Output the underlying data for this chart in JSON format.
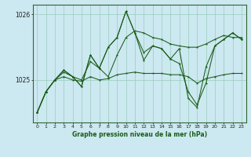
{
  "title": "Graphe pression niveau de la mer (hPa)",
  "background_color": "#cce8f0",
  "plot_bg_color": "#cce8f0",
  "line_color": "#1a5c1a",
  "grid_color": "#99ccbb",
  "ylim": [
    1024.35,
    1026.15
  ],
  "xlim": [
    -0.5,
    23.5
  ],
  "xticks": [
    0,
    1,
    2,
    3,
    4,
    5,
    6,
    7,
    8,
    9,
    10,
    11,
    12,
    13,
    14,
    15,
    16,
    17,
    18,
    19,
    20,
    21,
    22,
    23
  ],
  "yticks": [
    1025,
    1026
  ],
  "series_volatile": [
    1024.5,
    1024.82,
    1025.0,
    1025.15,
    1025.05,
    1024.9,
    1025.38,
    1025.18,
    1025.5,
    1025.65,
    1026.05,
    1025.72,
    1025.42,
    1025.52,
    1025.48,
    1025.32,
    1025.25,
    1024.82,
    1024.62,
    1024.95,
    1025.52,
    1025.62,
    1025.72,
    1025.62
  ],
  "series_smooth_high": [
    1024.5,
    1024.82,
    1025.0,
    1025.12,
    1025.05,
    1025.0,
    1025.28,
    1025.18,
    1025.05,
    1025.38,
    1025.65,
    1025.75,
    1025.72,
    1025.65,
    1025.62,
    1025.55,
    1025.52,
    1025.5,
    1025.5,
    1025.55,
    1025.62,
    1025.68,
    1025.65,
    1025.65
  ],
  "series_flat": [
    1024.5,
    1024.82,
    1025.0,
    1025.05,
    1025.0,
    1024.98,
    1025.05,
    1025.0,
    1025.02,
    1025.08,
    1025.1,
    1025.12,
    1025.1,
    1025.1,
    1025.1,
    1025.08,
    1025.08,
    1025.05,
    1024.95,
    1025.02,
    1025.05,
    1025.08,
    1025.1,
    1025.1
  ],
  "series_dip": [
    1024.5,
    1024.82,
    1025.0,
    1025.15,
    1025.05,
    1024.9,
    1025.38,
    1025.18,
    1025.5,
    1025.65,
    1026.05,
    1025.72,
    1025.3,
    1025.52,
    1025.48,
    1025.32,
    1025.48,
    1024.72,
    1024.58,
    1025.2,
    1025.52,
    1025.62,
    1025.72,
    1025.62
  ]
}
